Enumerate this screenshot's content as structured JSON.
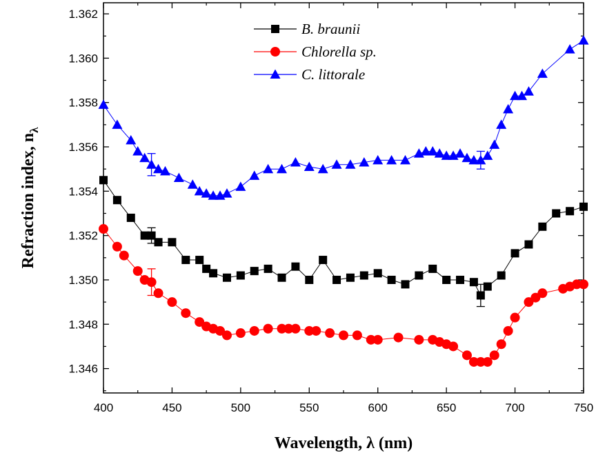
{
  "chart_data": {
    "type": "line",
    "title": "",
    "xlabel": "Wavelength, λ (nm)",
    "ylabel_main": "Refraction index, n",
    "ylabel_sub": "λ",
    "xlim": [
      400,
      750
    ],
    "ylim": [
      1.3449,
      1.3625
    ],
    "x_ticks": [
      400,
      450,
      500,
      550,
      600,
      650,
      700,
      750
    ],
    "y_ticks": [
      1.346,
      1.348,
      1.35,
      1.352,
      1.354,
      1.356,
      1.358,
      1.36,
      1.362
    ],
    "y_tick_labels": [
      "1.346",
      "1.348",
      "1.350",
      "1.352",
      "1.354",
      "1.356",
      "1.358",
      "1.360",
      "1.362"
    ],
    "grid": false,
    "legend_position": "top-center",
    "series": [
      {
        "name": "B. braunii",
        "color": "#000000",
        "marker": "square",
        "points": [
          [
            400,
            1.3545
          ],
          [
            410,
            1.3536
          ],
          [
            420,
            1.3528
          ],
          [
            430,
            1.352
          ],
          [
            435,
            1.352
          ],
          [
            440,
            1.3517
          ],
          [
            450,
            1.3517
          ],
          [
            460,
            1.3509
          ],
          [
            470,
            1.3509
          ],
          [
            475,
            1.3505
          ],
          [
            480,
            1.3503
          ],
          [
            490,
            1.3501
          ],
          [
            500,
            1.3502
          ],
          [
            510,
            1.3504
          ],
          [
            520,
            1.3505
          ],
          [
            530,
            1.3501
          ],
          [
            540,
            1.3506
          ],
          [
            550,
            1.35
          ],
          [
            560,
            1.3509
          ],
          [
            570,
            1.35
          ],
          [
            580,
            1.3501
          ],
          [
            590,
            1.3502
          ],
          [
            600,
            1.3503
          ],
          [
            610,
            1.35
          ],
          [
            620,
            1.3498
          ],
          [
            630,
            1.3502
          ],
          [
            640,
            1.3505
          ],
          [
            650,
            1.35
          ],
          [
            660,
            1.35
          ],
          [
            670,
            1.3499
          ],
          [
            675,
            1.3493
          ],
          [
            680,
            1.3497
          ],
          [
            690,
            1.3502
          ],
          [
            700,
            1.3512
          ],
          [
            710,
            1.3516
          ],
          [
            720,
            1.3524
          ],
          [
            730,
            1.353
          ],
          [
            740,
            1.3531
          ],
          [
            750,
            1.3533
          ]
        ],
        "error_bars": [
          [
            435,
            1.352,
            0.00035
          ],
          [
            675,
            1.3493,
            0.0005
          ]
        ]
      },
      {
        "name": "Chlorella sp.",
        "color": "#ff0000",
        "marker": "circle",
        "points": [
          [
            400,
            1.3523
          ],
          [
            410,
            1.3515
          ],
          [
            415,
            1.3511
          ],
          [
            425,
            1.3504
          ],
          [
            430,
            1.35
          ],
          [
            435,
            1.3499
          ],
          [
            440,
            1.3494
          ],
          [
            450,
            1.349
          ],
          [
            460,
            1.3485
          ],
          [
            470,
            1.3481
          ],
          [
            475,
            1.3479
          ],
          [
            480,
            1.3478
          ],
          [
            485,
            1.3477
          ],
          [
            490,
            1.3475
          ],
          [
            500,
            1.3476
          ],
          [
            510,
            1.3477
          ],
          [
            520,
            1.3478
          ],
          [
            530,
            1.3478
          ],
          [
            535,
            1.3478
          ],
          [
            540,
            1.3478
          ],
          [
            550,
            1.3477
          ],
          [
            555,
            1.3477
          ],
          [
            565,
            1.3476
          ],
          [
            575,
            1.3475
          ],
          [
            585,
            1.3475
          ],
          [
            595,
            1.3473
          ],
          [
            600,
            1.3473
          ],
          [
            615,
            1.3474
          ],
          [
            630,
            1.3473
          ],
          [
            640,
            1.3473
          ],
          [
            645,
            1.3472
          ],
          [
            650,
            1.3471
          ],
          [
            655,
            1.347
          ],
          [
            665,
            1.3466
          ],
          [
            670,
            1.3463
          ],
          [
            675,
            1.3463
          ],
          [
            680,
            1.3463
          ],
          [
            685,
            1.3466
          ],
          [
            690,
            1.3471
          ],
          [
            695,
            1.3477
          ],
          [
            700,
            1.3483
          ],
          [
            710,
            1.349
          ],
          [
            715,
            1.3492
          ],
          [
            720,
            1.3494
          ],
          [
            735,
            1.3496
          ],
          [
            740,
            1.3497
          ],
          [
            745,
            1.3498
          ],
          [
            750,
            1.3498
          ]
        ],
        "error_bars": [
          [
            435,
            1.3499,
            0.0006
          ]
        ]
      },
      {
        "name": "C. littorale",
        "color": "#0000ff",
        "marker": "triangle",
        "points": [
          [
            400,
            1.3579
          ],
          [
            410,
            1.357
          ],
          [
            420,
            1.3563
          ],
          [
            425,
            1.3558
          ],
          [
            430,
            1.3555
          ],
          [
            435,
            1.3552
          ],
          [
            440,
            1.355
          ],
          [
            445,
            1.3549
          ],
          [
            455,
            1.3546
          ],
          [
            465,
            1.3543
          ],
          [
            470,
            1.354
          ],
          [
            475,
            1.3539
          ],
          [
            480,
            1.3538
          ],
          [
            485,
            1.3538
          ],
          [
            490,
            1.3539
          ],
          [
            500,
            1.3542
          ],
          [
            510,
            1.3547
          ],
          [
            520,
            1.355
          ],
          [
            530,
            1.355
          ],
          [
            540,
            1.3553
          ],
          [
            550,
            1.3551
          ],
          [
            560,
            1.355
          ],
          [
            570,
            1.3552
          ],
          [
            580,
            1.3552
          ],
          [
            590,
            1.3553
          ],
          [
            600,
            1.3554
          ],
          [
            610,
            1.3554
          ],
          [
            620,
            1.3554
          ],
          [
            630,
            1.3557
          ],
          [
            635,
            1.3558
          ],
          [
            640,
            1.3558
          ],
          [
            645,
            1.3557
          ],
          [
            650,
            1.3556
          ],
          [
            655,
            1.3556
          ],
          [
            660,
            1.3557
          ],
          [
            665,
            1.3555
          ],
          [
            670,
            1.3554
          ],
          [
            675,
            1.3554
          ],
          [
            680,
            1.3556
          ],
          [
            685,
            1.3561
          ],
          [
            690,
            1.357
          ],
          [
            695,
            1.3577
          ],
          [
            700,
            1.3583
          ],
          [
            705,
            1.3583
          ],
          [
            710,
            1.3585
          ],
          [
            720,
            1.3593
          ],
          [
            740,
            1.3604
          ],
          [
            750,
            1.3608
          ]
        ],
        "error_bars": [
          [
            435,
            1.3552,
            0.0005
          ],
          [
            675,
            1.3554,
            0.0004
          ]
        ]
      }
    ]
  }
}
